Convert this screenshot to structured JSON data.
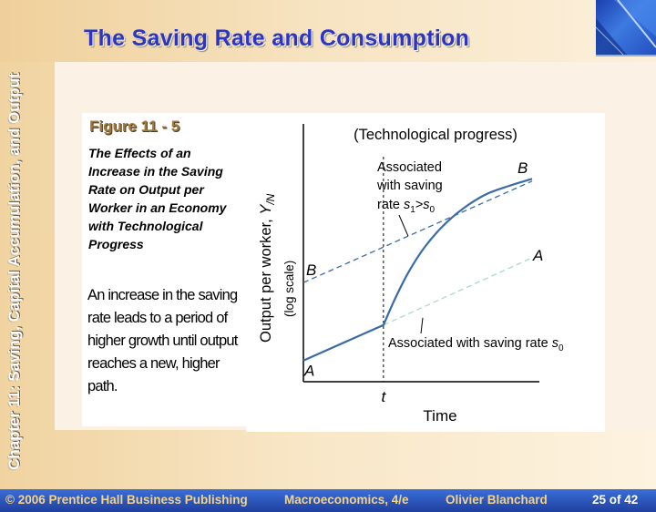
{
  "slide": {
    "title": "The Saving Rate and Consumption",
    "side_label": "Chapter 11: Saving, Capital Accumulation, and Output",
    "figure_label": "Figure 11 - 5",
    "figure_caption": "The Effects of an Increase in the Saving Rate on Output per Worker in an Economy with Technological Progress",
    "figure_description": "An increase in the saving rate leads to a period of higher growth until output reaches a new, higher path."
  },
  "footer": {
    "copyright": "© 2006 Prentice Hall Business Publishing",
    "book": "Macroeconomics, 4/e",
    "author": "Olivier Blanchard",
    "page": "25 of 42"
  },
  "colors": {
    "title": "#2b35c8",
    "solid_path": "#3a6aa8",
    "dashed_high": "#3a6aa8",
    "dashed_low": "#a8d8d0",
    "footer_bg": "#2a55c0",
    "footer_text": "#f3d38a"
  },
  "chart_data": {
    "type": "line",
    "title": "(Technological progress)",
    "xlabel": "Time",
    "ylabel": "Output per worker, Y/N",
    "ylabel_main": "Output per worker, ",
    "ylabel_var": "Y",
    "ylabel_sub": "/N",
    "ylabel_scale": "(log scale)",
    "x_tick_label": "t",
    "log_scale_y": true,
    "grid": false,
    "xlim": [
      0,
      10
    ],
    "ylim": [
      0,
      10
    ],
    "t": 3.5,
    "series": [
      {
        "style": "dashed-dark",
        "start_label": "B",
        "end_label": "B",
        "annotation_lines": [
          "Associated",
          "with saving"
        ],
        "annotation_rate_prefix": "rate ",
        "annotation_rate_expr": [
          "s",
          "1",
          ">",
          "s",
          "0"
        ],
        "x": [
          0,
          10
        ],
        "y": [
          4.2,
          8.5
        ]
      },
      {
        "style": "dashed-light",
        "end_label": "A",
        "annotation": "Associated with saving rate s0",
        "annotation_text": "Associated with saving rate ",
        "annotation_var": "s",
        "annotation_sub": "0",
        "x": [
          3.5,
          10
        ],
        "y": [
          2.4,
          5.25
        ]
      },
      {
        "style": "solid",
        "start_label": "A",
        "x": [
          0,
          3.5,
          4.0,
          4.6,
          5.3,
          6.1,
          7.0,
          8.0,
          9.0,
          10.0
        ],
        "y": [
          0.9,
          2.4,
          3.5,
          4.65,
          5.7,
          6.6,
          7.35,
          7.95,
          8.3,
          8.6
        ]
      }
    ]
  }
}
